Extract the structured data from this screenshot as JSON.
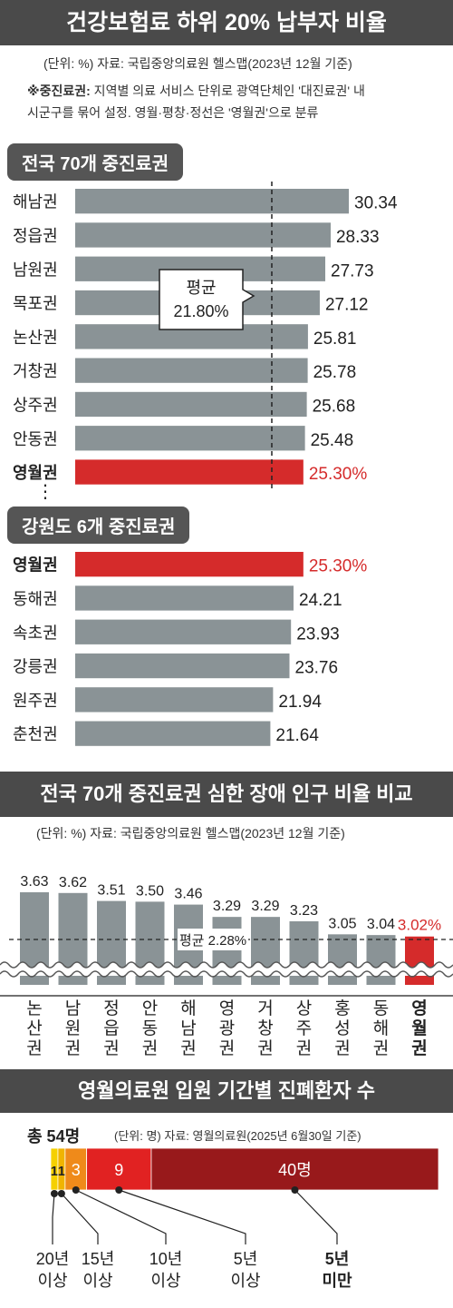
{
  "header": {
    "title": "건강보험료 하위 20% 납부자 비율",
    "source": "(단위: %)  자료: 국립중앙의료원 헬스맵(2023년 12월 기준)",
    "note_label": "※중진료권:",
    "note_line1": " 지역별 의료 서비스 단위로 광역단체인 '대진료권' 내",
    "note_line2": "시군구를 묶어 설정. 영월·평창·정선은 '영월권'으로 분류"
  },
  "section1": {
    "label": "전국 70개 중진료권",
    "avg_label_1": "평균",
    "avg_label_2": "21.80%",
    "ellipsis": "⋮"
  },
  "section2": {
    "label": "강원도 6개 중진료권"
  },
  "section3": {
    "title": "전국 70개 중진료권 심한 장애 인구 비율 비교",
    "source": "(단위: %)  자료: 국립중앙의료원 헬스맵(2023년 12월 기준)",
    "avg_label": "평균 2.28%"
  },
  "section4": {
    "title": "영월의료원 입원 기간별 진폐환자 수",
    "total": "총 54명",
    "source": "(단위: 명)  자료: 영월의료원(2025년 6월30일 기준)"
  },
  "colors": {
    "gray_bar": "#8a9396",
    "highlight": "#d52b2b",
    "dark_banner": "#4a4a4a"
  },
  "chart_data": [
    {
      "type": "bar",
      "orientation": "horizontal",
      "title": "전국 70개 중진료권",
      "categories": [
        "해남권",
        "정읍권",
        "남원권",
        "목포권",
        "논산권",
        "거창권",
        "상주권",
        "안동권",
        "영월권"
      ],
      "values": [
        30.34,
        28.33,
        27.73,
        27.12,
        25.81,
        25.78,
        25.68,
        25.48,
        25.3
      ],
      "value_labels": [
        "30.34",
        "28.33",
        "27.73",
        "27.12",
        "25.81",
        "25.78",
        "25.68",
        "25.48",
        "25.30%"
      ],
      "highlight": "영월권",
      "average": 21.8
    },
    {
      "type": "bar",
      "orientation": "horizontal",
      "title": "강원도 6개 중진료권",
      "categories": [
        "영월권",
        "동해권",
        "속초권",
        "강릉권",
        "원주권",
        "춘천권"
      ],
      "values": [
        25.3,
        24.21,
        23.93,
        23.76,
        21.94,
        21.64
      ],
      "value_labels": [
        "25.30%",
        "24.21",
        "23.93",
        "23.76",
        "21.94",
        "21.64"
      ],
      "highlight": "영월권"
    },
    {
      "type": "bar",
      "orientation": "vertical",
      "title": "전국 70개 중진료권 심한 장애 인구 비율 비교",
      "categories": [
        "논산권",
        "남원권",
        "정읍권",
        "안동권",
        "해남권",
        "영광권",
        "거창권",
        "상주권",
        "홍성권",
        "동해권",
        "영월권"
      ],
      "values": [
        3.63,
        3.62,
        3.51,
        3.5,
        3.46,
        3.29,
        3.29,
        3.23,
        3.05,
        3.04,
        3.02
      ],
      "value_labels": [
        "3.63",
        "3.62",
        "3.51",
        "3.50",
        "3.46",
        "3.29",
        "3.29",
        "3.23",
        "3.05",
        "3.04",
        "3.02%"
      ],
      "highlight": "영월권",
      "average": 2.28,
      "axis_break": true
    },
    {
      "type": "bar",
      "orientation": "stacked-horizontal",
      "title": "영월의료원 입원 기간별 진폐환자 수",
      "segments": [
        {
          "name": "20년 이상",
          "value": 1,
          "color": "#f5d000"
        },
        {
          "name": "15년 이상",
          "value": 1,
          "color": "#f0b400"
        },
        {
          "name": "10년 이상",
          "value": 3,
          "color": "#ef8a1a"
        },
        {
          "name": "5년 이상",
          "value": 9,
          "color": "#e12222"
        },
        {
          "name": "5년 미만",
          "value": 40,
          "color": "#98191b"
        }
      ],
      "value_labels": [
        "1",
        "1",
        "3",
        "9",
        "40명"
      ],
      "callout_labels": [
        [
          "20년",
          "이상"
        ],
        [
          "15년",
          "이상"
        ],
        [
          "10년",
          "이상"
        ],
        [
          "5년",
          "이상"
        ],
        [
          "5년",
          "미만"
        ]
      ],
      "total": 54
    }
  ]
}
